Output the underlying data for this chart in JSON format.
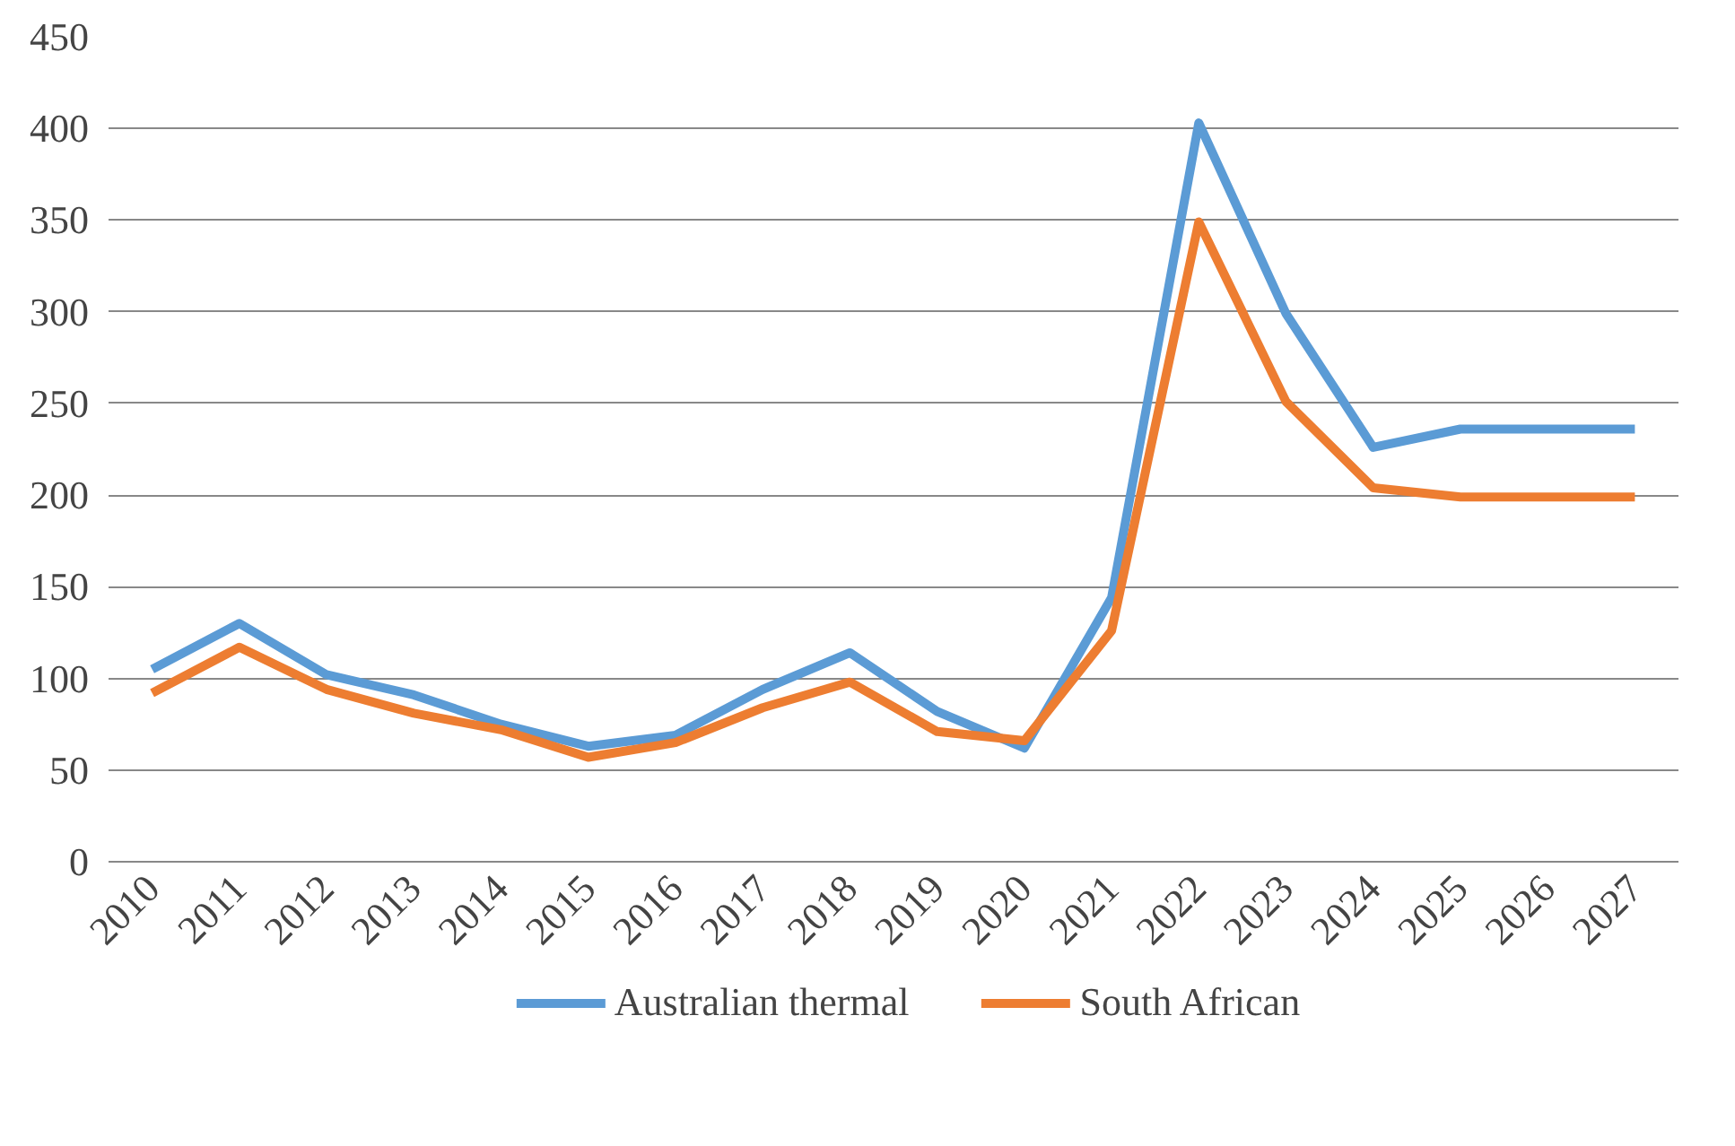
{
  "chart_data": {
    "type": "line",
    "categories": [
      "2010",
      "2011",
      "2012",
      "2013",
      "2014",
      "2015",
      "2016",
      "2017",
      "2018",
      "2019",
      "2020",
      "2021",
      "2022",
      "2023",
      "2024",
      "2025",
      "2026",
      "2027"
    ],
    "series": [
      {
        "name": "Australian thermal",
        "color": "#5b9bd5",
        "values": [
          105,
          130,
          102,
          91,
          75,
          63,
          69,
          94,
          114,
          82,
          62,
          144,
          403,
          299,
          226,
          236,
          236,
          236
        ]
      },
      {
        "name": "South African",
        "color": "#ed7d31",
        "values": [
          92,
          117,
          94,
          81,
          72,
          57,
          65,
          84,
          98,
          71,
          66,
          126,
          349,
          251,
          204,
          199,
          199,
          199
        ]
      }
    ],
    "ylim": [
      0,
      450
    ],
    "yticks": [
      0,
      50,
      100,
      150,
      200,
      250,
      300,
      350,
      400,
      450
    ],
    "grid": "y",
    "legend": "bottom",
    "marker": "none",
    "line_style": "solid"
  }
}
